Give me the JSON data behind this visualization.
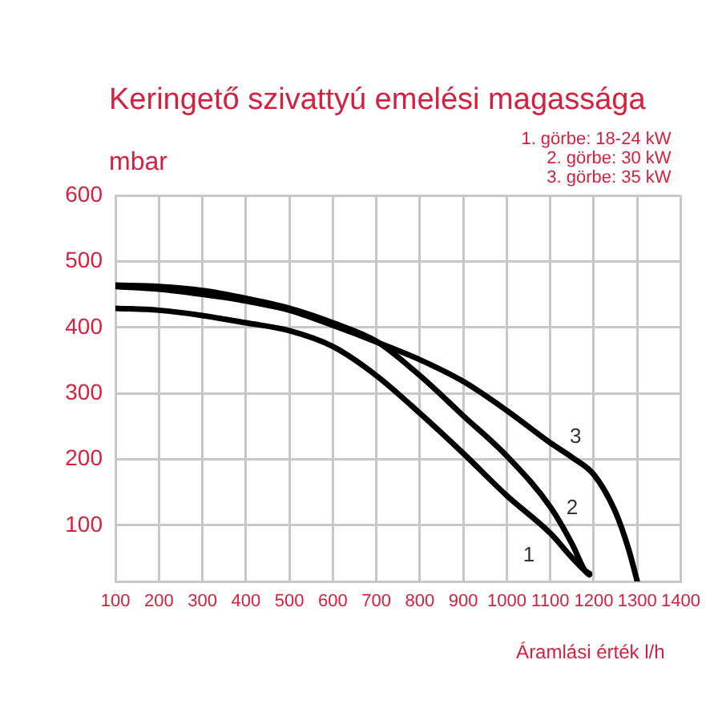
{
  "chart_data": {
    "type": "line",
    "title": "Keringető szivattyú emelési magassága",
    "ylabel": "mbar",
    "xlabel": "Áramlási érték l/h",
    "annotations": [
      "1. görbe: 18-24 kW",
      "2. görbe: 30 kW",
      "3. görbe: 35 kW"
    ],
    "series": [
      {
        "name": "1",
        "color": "#000000",
        "x": [
          100,
          200,
          300,
          400,
          500,
          600,
          700,
          800,
          900,
          1000,
          1100,
          1150,
          1180,
          1190
        ],
        "values": [
          429,
          426,
          418,
          407,
          395,
          371,
          327,
          270,
          209,
          145,
          88,
          51,
          31,
          27
        ]
      },
      {
        "name": "2",
        "color": "#000000",
        "x": [
          100,
          200,
          300,
          400,
          500,
          600,
          700,
          800,
          900,
          1000,
          1100,
          1150,
          1180,
          1190
        ],
        "values": [
          464,
          462,
          456,
          444,
          429,
          407,
          379,
          327,
          266,
          205,
          128,
          72,
          31,
          25
        ]
      },
      {
        "name": "3",
        "color": "#000000",
        "x": [
          100,
          200,
          300,
          400,
          500,
          600,
          700,
          800,
          900,
          1000,
          1100,
          1150,
          1200,
          1250,
          1280,
          1300
        ],
        "values": [
          462,
          458,
          450,
          440,
          426,
          403,
          378,
          351,
          318,
          274,
          225,
          203,
          177,
          120,
          64,
          15
        ]
      }
    ],
    "xlim": [
      100,
      1400
    ],
    "xticks": [
      100,
      200,
      300,
      400,
      500,
      600,
      700,
      800,
      900,
      1000,
      1100,
      1200,
      1300,
      1400
    ],
    "ylim": [
      15,
      600
    ],
    "yticks": [
      100,
      200,
      300,
      400,
      500,
      600
    ],
    "grid": true
  }
}
